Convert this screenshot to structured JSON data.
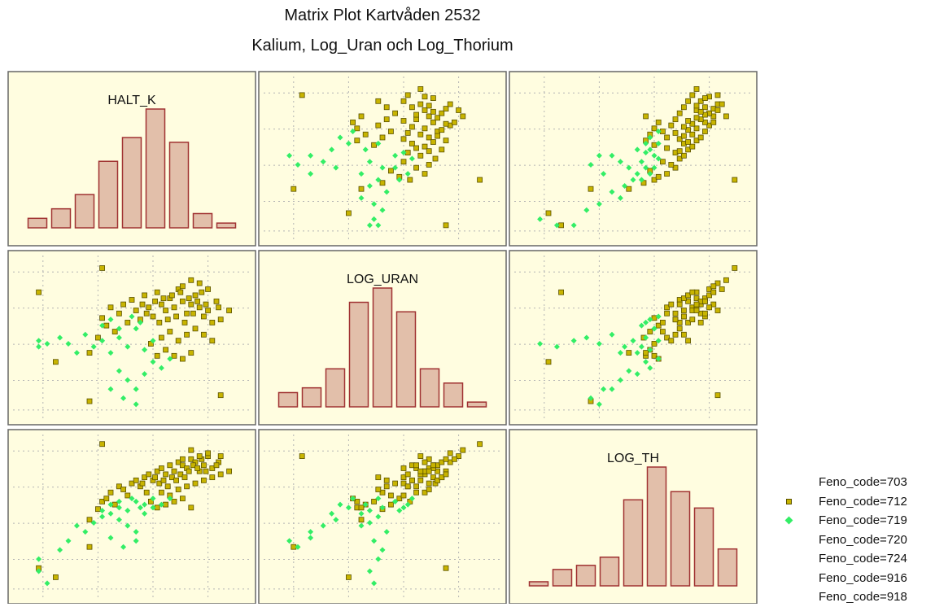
{
  "title": "Matrix Plot Kartvåden 2532",
  "subtitle": "Kalium, Log_Uran och Log_Thorium",
  "colors": {
    "panel_bg": "#fffde0",
    "panel_border": "#666666",
    "grid": "#b4b4b4",
    "bar_fill": "#e2bfaa",
    "bar_stroke": "#a03232",
    "series_712": "#c8b400",
    "series_719": "#33ee66"
  },
  "legend": [
    {
      "label": "Feno_code=703",
      "marker": "none"
    },
    {
      "label": "Feno_code=712",
      "marker": "square"
    },
    {
      "label": "Feno_code=719",
      "marker": "diamond"
    },
    {
      "label": "Feno_code=720",
      "marker": "none"
    },
    {
      "label": "Feno_code=724",
      "marker": "none"
    },
    {
      "label": "Feno_code=916",
      "marker": "none"
    },
    {
      "label": "Feno_code=918",
      "marker": "none"
    }
  ],
  "chart_data": {
    "type": "scatter",
    "variables": [
      "HALT_K",
      "LOG_URAN",
      "LOG_TH"
    ],
    "grid": true,
    "legend_position": "right",
    "histograms": [
      {
        "variable": "HALT_K",
        "counts": [
          2,
          4,
          7,
          14,
          19,
          25,
          18,
          3,
          1
        ]
      },
      {
        "variable": "LOG_URAN",
        "counts": [
          3,
          4,
          8,
          22,
          25,
          20,
          8,
          5,
          1
        ]
      },
      {
        "variable": "LOG_TH",
        "counts": [
          1,
          4,
          5,
          7,
          21,
          29,
          23,
          19,
          9
        ]
      }
    ],
    "series": [
      {
        "name": "Feno_code=712",
        "marker": "square",
        "points": [
          [
            0.3,
            0.4,
            0.48
          ],
          [
            0.34,
            0.5,
            0.55
          ],
          [
            0.36,
            0.63,
            0.6
          ],
          [
            0.38,
            0.58,
            0.62
          ],
          [
            0.4,
            0.7,
            0.66
          ],
          [
            0.42,
            0.54,
            0.58
          ],
          [
            0.44,
            0.66,
            0.7
          ],
          [
            0.46,
            0.72,
            0.68
          ],
          [
            0.48,
            0.6,
            0.64
          ],
          [
            0.5,
            0.75,
            0.72
          ],
          [
            0.52,
            0.68,
            0.74
          ],
          [
            0.54,
            0.62,
            0.7
          ],
          [
            0.56,
            0.78,
            0.76
          ],
          [
            0.58,
            0.7,
            0.78
          ],
          [
            0.6,
            0.64,
            0.74
          ],
          [
            0.62,
            0.8,
            0.8
          ],
          [
            0.64,
            0.72,
            0.82
          ],
          [
            0.66,
            0.68,
            0.78
          ],
          [
            0.68,
            0.76,
            0.84
          ],
          [
            0.7,
            0.7,
            0.8
          ],
          [
            0.72,
            0.82,
            0.86
          ],
          [
            0.74,
            0.74,
            0.84
          ],
          [
            0.76,
            0.66,
            0.82
          ],
          [
            0.78,
            0.72,
            0.88
          ],
          [
            0.8,
            0.78,
            0.86
          ],
          [
            0.82,
            0.7,
            0.8
          ],
          [
            0.84,
            0.64,
            0.84
          ],
          [
            0.86,
            0.68,
            0.9
          ],
          [
            0.88,
            0.6,
            0.82
          ],
          [
            0.91,
            0.7,
            0.86
          ],
          [
            0.55,
            0.72,
            0.72
          ],
          [
            0.57,
            0.66,
            0.66
          ],
          [
            0.61,
            0.74,
            0.76
          ],
          [
            0.63,
            0.6,
            0.72
          ],
          [
            0.65,
            0.76,
            0.74
          ],
          [
            0.67,
            0.62,
            0.7
          ],
          [
            0.69,
            0.78,
            0.76
          ],
          [
            0.71,
            0.64,
            0.74
          ],
          [
            0.73,
            0.8,
            0.78
          ],
          [
            0.75,
            0.6,
            0.76
          ],
          [
            0.77,
            0.76,
            0.8
          ],
          [
            0.79,
            0.66,
            0.84
          ],
          [
            0.81,
            0.74,
            0.82
          ],
          [
            0.83,
            0.8,
            0.88
          ],
          [
            0.85,
            0.72,
            0.8
          ],
          [
            0.59,
            0.46,
            0.6
          ],
          [
            0.62,
            0.38,
            0.56
          ],
          [
            0.66,
            0.42,
            0.58
          ],
          [
            0.7,
            0.38,
            0.6
          ],
          [
            0.74,
            0.36,
            0.62
          ],
          [
            0.78,
            0.4,
            0.56
          ],
          [
            0.64,
            0.5,
            0.66
          ],
          [
            0.68,
            0.54,
            0.64
          ],
          [
            0.72,
            0.48,
            0.68
          ],
          [
            0.76,
            0.52,
            0.7
          ],
          [
            0.8,
            0.56,
            0.72
          ],
          [
            0.84,
            0.52,
            0.74
          ],
          [
            0.88,
            0.48,
            0.76
          ],
          [
            0.92,
            0.62,
            0.78
          ],
          [
            0.96,
            0.68,
            0.8
          ],
          [
            0.9,
            0.74,
            0.84
          ],
          [
            0.86,
            0.82,
            0.92
          ],
          [
            0.82,
            0.86,
            0.9
          ],
          [
            0.78,
            0.88,
            0.94
          ],
          [
            0.74,
            0.84,
            0.88
          ],
          [
            0.06,
            0.8,
            0.16
          ],
          [
            0.14,
            0.34,
            0.1
          ],
          [
            0.3,
            0.08,
            0.3
          ],
          [
            0.92,
            0.12,
            0.9
          ],
          [
            0.36,
            0.96,
            0.98
          ]
        ]
      },
      {
        "name": "Feno_code=719",
        "marker": "diamond",
        "points": [
          [
            0.06,
            0.48,
            0.22
          ],
          [
            0.06,
            0.44,
            0.14
          ],
          [
            0.1,
            0.46,
            0.06
          ],
          [
            0.16,
            0.5,
            0.28
          ],
          [
            0.2,
            0.46,
            0.34
          ],
          [
            0.24,
            0.4,
            0.44
          ],
          [
            0.28,
            0.52,
            0.4
          ],
          [
            0.32,
            0.44,
            0.46
          ],
          [
            0.36,
            0.48,
            0.5
          ],
          [
            0.4,
            0.4,
            0.52
          ],
          [
            0.44,
            0.5,
            0.56
          ],
          [
            0.48,
            0.44,
            0.54
          ],
          [
            0.52,
            0.56,
            0.6
          ],
          [
            0.56,
            0.42,
            0.58
          ],
          [
            0.6,
            0.48,
            0.62
          ],
          [
            0.44,
            0.28,
            0.48
          ],
          [
            0.48,
            0.22,
            0.44
          ],
          [
            0.52,
            0.16,
            0.4
          ],
          [
            0.4,
            0.16,
            0.36
          ],
          [
            0.46,
            0.1,
            0.3
          ],
          [
            0.52,
            0.06,
            0.34
          ],
          [
            0.56,
            0.26,
            0.52
          ],
          [
            0.6,
            0.34,
            0.56
          ],
          [
            0.64,
            0.3,
            0.58
          ],
          [
            0.68,
            0.36,
            0.62
          ],
          [
            0.36,
            0.58,
            0.54
          ],
          [
            0.4,
            0.62,
            0.58
          ],
          [
            0.44,
            0.56,
            0.6
          ],
          [
            0.5,
            0.64,
            0.62
          ],
          [
            0.54,
            0.6,
            0.56
          ]
        ]
      }
    ]
  }
}
